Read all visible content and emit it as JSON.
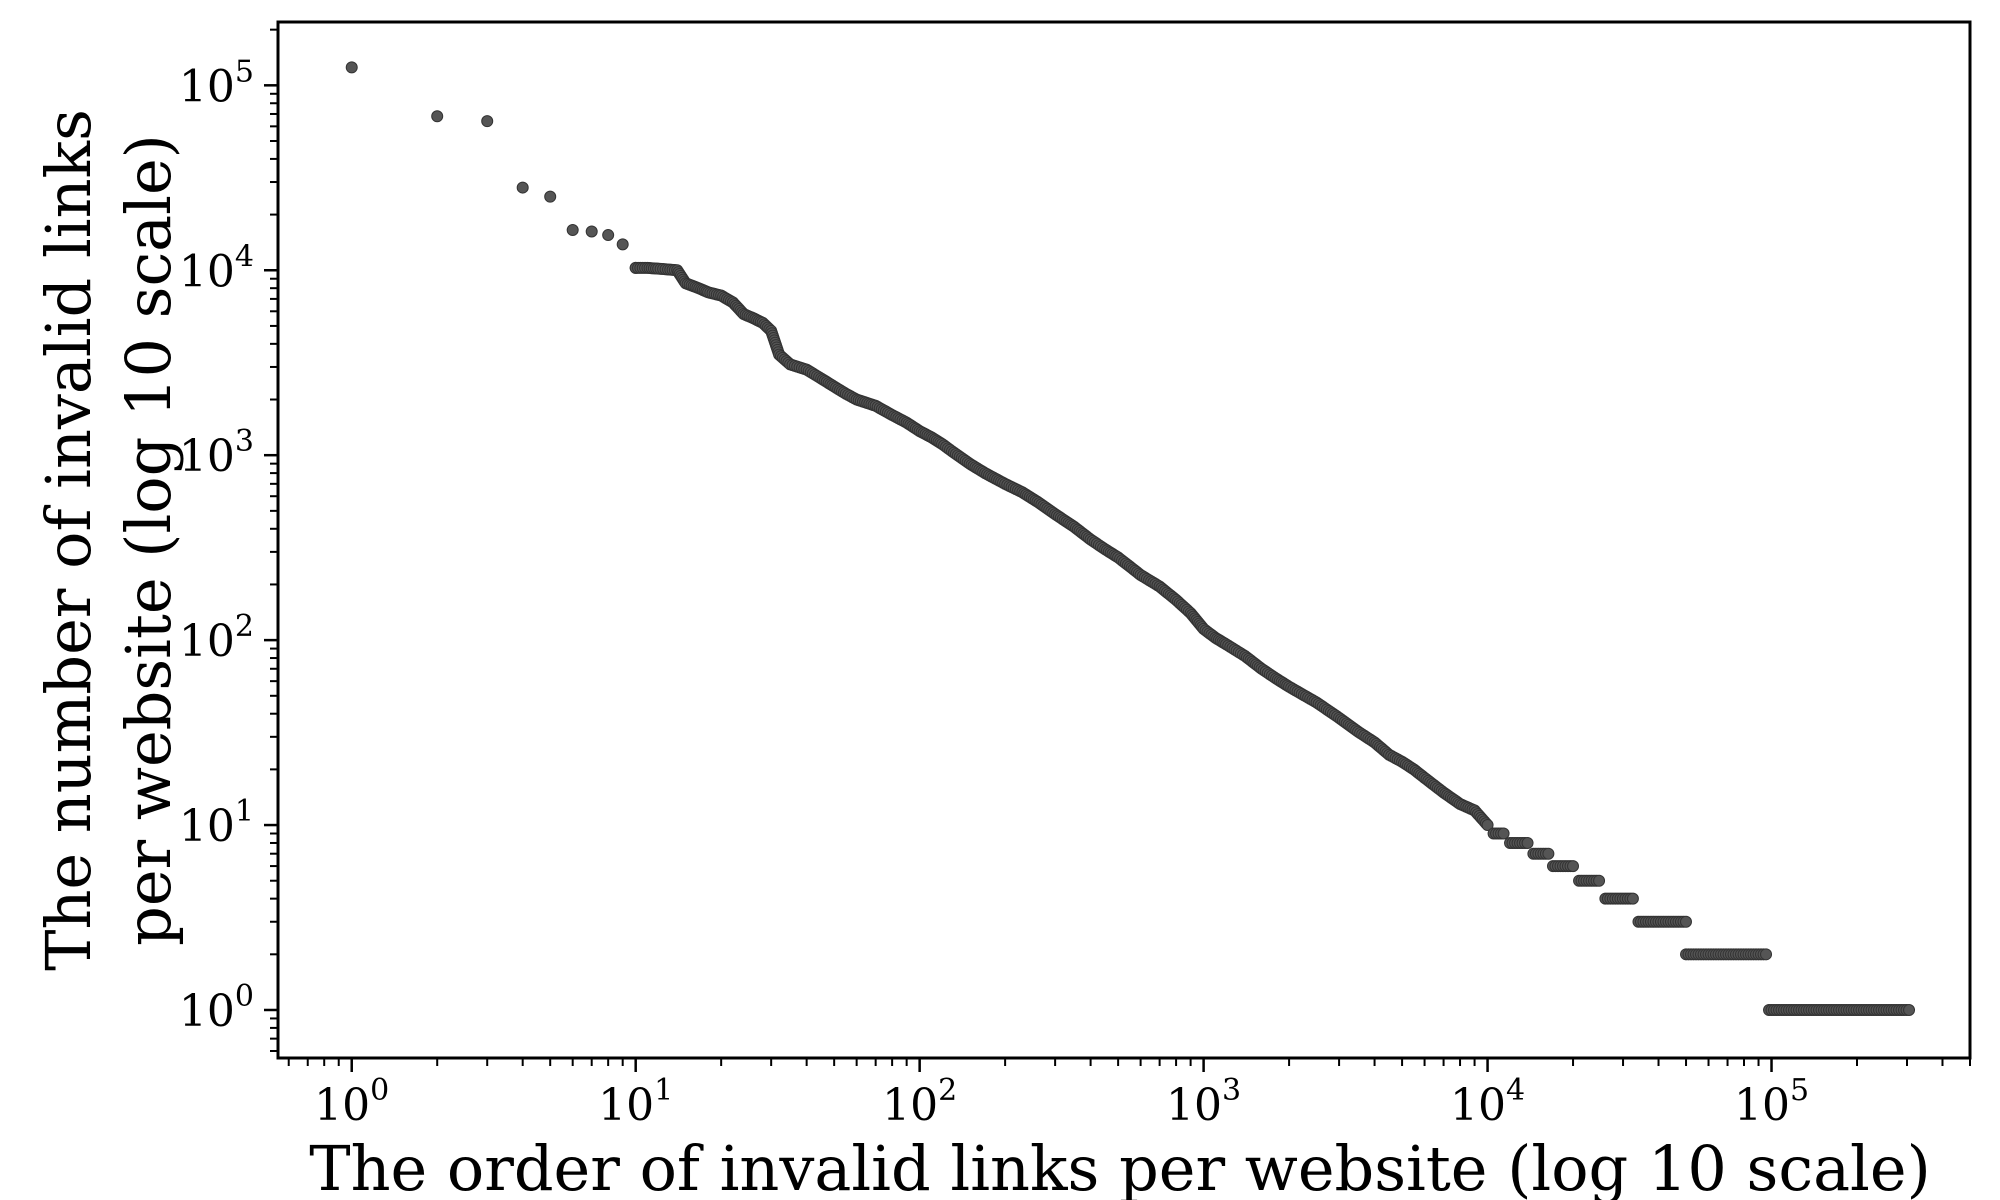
{
  "chart_data": {
    "type": "scatter",
    "title": "",
    "xlabel": "The order of invalid links per website (log 10 scale)",
    "ylabel_lines": [
      "The number of invalid links",
      "per website (log 10 scale)"
    ],
    "x_scale": "log10",
    "y_scale": "log10",
    "xlim": [
      0.55,
      500000
    ],
    "ylim": [
      0.55,
      220000
    ],
    "grid": false,
    "legend": "none",
    "x_ticks": [
      {
        "value": 1,
        "base": "10",
        "exp": "0"
      },
      {
        "value": 10,
        "base": "10",
        "exp": "1"
      },
      {
        "value": 100,
        "base": "10",
        "exp": "2"
      },
      {
        "value": 1000,
        "base": "10",
        "exp": "3"
      },
      {
        "value": 10000,
        "base": "10",
        "exp": "4"
      },
      {
        "value": 100000,
        "base": "10",
        "exp": "5"
      }
    ],
    "y_ticks": [
      {
        "value": 1,
        "base": "10",
        "exp": "0"
      },
      {
        "value": 10,
        "base": "10",
        "exp": "1"
      },
      {
        "value": 100,
        "base": "10",
        "exp": "2"
      },
      {
        "value": 1000,
        "base": "10",
        "exp": "3"
      },
      {
        "value": 10000,
        "base": "10",
        "exp": "4"
      },
      {
        "value": 100000,
        "base": "10",
        "exp": "5"
      }
    ],
    "marker_color": "#555555",
    "points": [
      [
        1,
        125000
      ],
      [
        2,
        68000
      ],
      [
        3,
        64000
      ],
      [
        4,
        28000
      ],
      [
        5,
        25000
      ],
      [
        6,
        16500
      ],
      [
        7,
        16200
      ],
      [
        8,
        15500
      ],
      [
        9,
        13800
      ],
      [
        10,
        10300
      ],
      [
        11,
        10300
      ],
      [
        12,
        10200
      ],
      [
        13,
        10100
      ],
      [
        14,
        10000
      ],
      [
        15,
        8500
      ],
      [
        16,
        8200
      ],
      [
        17,
        7900
      ],
      [
        18,
        7600
      ],
      [
        20,
        7300
      ],
      [
        22,
        6700
      ],
      [
        24,
        5800
      ],
      [
        26,
        5500
      ],
      [
        28,
        5200
      ],
      [
        30,
        4700
      ],
      [
        32,
        3500
      ],
      [
        35,
        3100
      ],
      [
        40,
        2900
      ],
      [
        45,
        2600
      ],
      [
        50,
        2350
      ],
      [
        55,
        2150
      ],
      [
        60,
        2000
      ],
      [
        70,
        1850
      ],
      [
        80,
        1650
      ],
      [
        90,
        1500
      ],
      [
        100,
        1350
      ],
      [
        110,
        1250
      ],
      [
        120,
        1150
      ],
      [
        130,
        1050
      ],
      [
        150,
        900
      ],
      [
        170,
        800
      ],
      [
        200,
        700
      ],
      [
        230,
        630
      ],
      [
        260,
        560
      ],
      [
        300,
        480
      ],
      [
        350,
        410
      ],
      [
        400,
        350
      ],
      [
        450,
        310
      ],
      [
        500,
        280
      ],
      [
        550,
        250
      ],
      [
        600,
        225
      ],
      [
        700,
        195
      ],
      [
        800,
        165
      ],
      [
        900,
        140
      ],
      [
        1000,
        115
      ],
      [
        1100,
        103
      ],
      [
        1200,
        95
      ],
      [
        1400,
        82
      ],
      [
        1600,
        70
      ],
      [
        1800,
        62
      ],
      [
        2000,
        56
      ],
      [
        2500,
        46
      ],
      [
        3000,
        38
      ],
      [
        3500,
        32
      ],
      [
        4000,
        28
      ],
      [
        4500,
        24
      ],
      [
        5000,
        22
      ],
      [
        5500,
        20
      ],
      [
        6000,
        18
      ],
      [
        7000,
        15
      ],
      [
        8000,
        13
      ],
      [
        9000,
        12
      ],
      [
        10000,
        10
      ]
    ],
    "plateaus": [
      {
        "y": 9,
        "x_start": 10500,
        "x_end": 11500
      },
      {
        "y": 8,
        "x_start": 12000,
        "x_end": 14000
      },
      {
        "y": 7,
        "x_start": 14500,
        "x_end": 16500
      },
      {
        "y": 6,
        "x_start": 17000,
        "x_end": 20000
      },
      {
        "y": 5,
        "x_start": 21000,
        "x_end": 25000
      },
      {
        "y": 4,
        "x_start": 26000,
        "x_end": 33000
      },
      {
        "y": 3,
        "x_start": 34000,
        "x_end": 50000
      },
      {
        "y": 2,
        "x_start": 50000,
        "x_end": 97000
      },
      {
        "y": 1,
        "x_start": 98000,
        "x_end": 310000
      }
    ]
  }
}
